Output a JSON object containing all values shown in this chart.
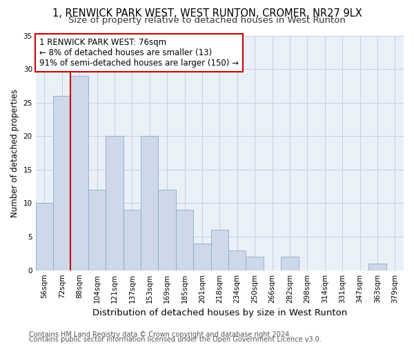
{
  "title1": "1, RENWICK PARK WEST, WEST RUNTON, CROMER, NR27 9LX",
  "title2": "Size of property relative to detached houses in West Runton",
  "xlabel": "Distribution of detached houses by size in West Runton",
  "ylabel": "Number of detached properties",
  "bin_labels": [
    "56sqm",
    "72sqm",
    "88sqm",
    "104sqm",
    "121sqm",
    "137sqm",
    "153sqm",
    "169sqm",
    "185sqm",
    "201sqm",
    "218sqm",
    "234sqm",
    "250sqm",
    "266sqm",
    "282sqm",
    "298sqm",
    "314sqm",
    "331sqm",
    "347sqm",
    "363sqm",
    "379sqm"
  ],
  "bar_heights": [
    10,
    26,
    29,
    12,
    20,
    9,
    20,
    12,
    9,
    4,
    6,
    3,
    2,
    0,
    2,
    0,
    0,
    0,
    0,
    1,
    0
  ],
  "bar_color": "#cdd8e8",
  "bar_edge_color": "#8aaac8",
  "grid_color": "#c8cfe0",
  "background_color": "#eaf0f8",
  "vline_x": 1.5,
  "vline_color": "#cc0000",
  "annotation_text": "1 RENWICK PARK WEST: 76sqm\n← 8% of detached houses are smaller (13)\n91% of semi-detached houses are larger (150) →",
  "annotation_box_color": "#ffffff",
  "annotation_box_edge": "#cc0000",
  "ylim": [
    0,
    35
  ],
  "yticks": [
    0,
    5,
    10,
    15,
    20,
    25,
    30,
    35
  ],
  "footnote1": "Contains HM Land Registry data © Crown copyright and database right 2024.",
  "footnote2": "Contains public sector information licensed under the Open Government Licence v3.0.",
  "title1_fontsize": 10.5,
  "title2_fontsize": 9.5,
  "xlabel_fontsize": 9.5,
  "ylabel_fontsize": 8.5,
  "tick_fontsize": 7.5,
  "annotation_fontsize": 8.5,
  "footnote_fontsize": 7
}
